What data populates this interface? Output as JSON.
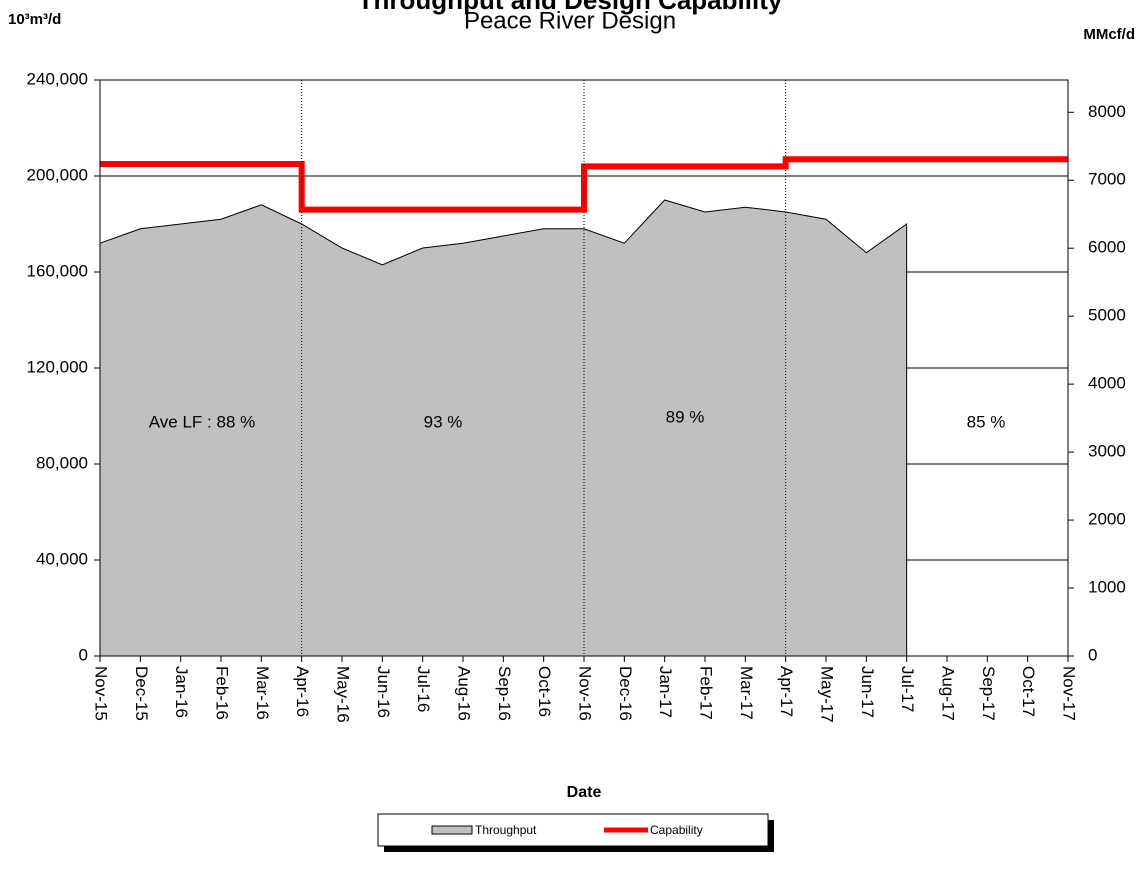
{
  "chart_data": {
    "type": "area",
    "title": "Throughput and Design Capability",
    "subtitle": "Peace River Design",
    "y_axis_label": "10³m³/d",
    "y2_axis_label": "MMcf/d",
    "x_axis_label": "Date",
    "categories": [
      "Nov-15",
      "Dec-15",
      "Jan-16",
      "Feb-16",
      "Mar-16",
      "Apr-16",
      "May-16",
      "Jun-16",
      "Jul-16",
      "Aug-16",
      "Sep-16",
      "Oct-16",
      "Nov-16",
      "Dec-16",
      "Jan-17",
      "Feb-17",
      "Mar-17",
      "Apr-17",
      "May-17",
      "Jun-17",
      "Jul-17",
      "Aug-17",
      "Sep-17",
      "Oct-17",
      "Nov-17"
    ],
    "series": [
      {
        "name": "Throughput",
        "type": "area",
        "color": "#c0c0c0",
        "values": [
          172000,
          178000,
          180000,
          182000,
          188000,
          180000,
          170000,
          163000,
          170000,
          172000,
          175000,
          178000,
          178000,
          172000,
          190000,
          185000,
          187000,
          185000,
          182000,
          168000,
          180000,
          null,
          null,
          null,
          null
        ]
      },
      {
        "name": "Capability",
        "type": "step",
        "color": "#ff0000",
        "values": [
          205000,
          205000,
          205000,
          205000,
          205000,
          186000,
          186000,
          186000,
          186000,
          186000,
          186000,
          186000,
          204000,
          204000,
          204000,
          204000,
          204000,
          207000,
          207000,
          207000,
          207000,
          207000,
          207000,
          207000,
          207000
        ]
      }
    ],
    "annotations": [
      "Ave LF : 88 %",
      "93 %",
      "89 %",
      "85 %"
    ],
    "ylim": [
      0,
      240000
    ],
    "yticks": [
      {
        "value": 0,
        "label": "0"
      },
      {
        "value": 40000,
        "label": "40,000"
      },
      {
        "value": 80000,
        "label": "80,000"
      },
      {
        "value": 120000,
        "label": "120,000"
      },
      {
        "value": 160000,
        "label": "160,000"
      },
      {
        "value": 200000,
        "label": "200,000"
      },
      {
        "value": 240000,
        "label": "240,000"
      }
    ],
    "y2lim": [
      0,
      8475
    ],
    "y2ticks": [
      0,
      1000,
      2000,
      3000,
      4000,
      5000,
      6000,
      7000,
      8000
    ],
    "grid": true,
    "legend": "bottom"
  }
}
